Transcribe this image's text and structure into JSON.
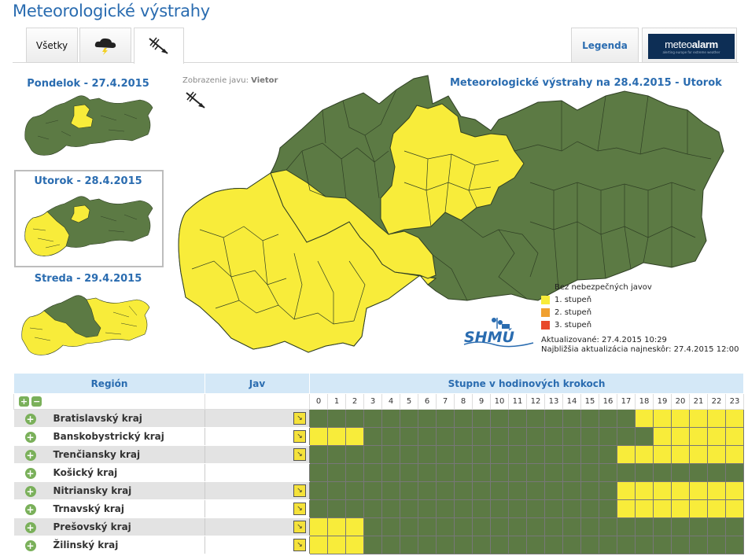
{
  "page": {
    "title": "Meteorologické výstrahy"
  },
  "tabs": {
    "all": "Všetky",
    "storm_icon": "storm-icon",
    "wind_icon": "wind-icon",
    "legend": "Legenda",
    "meteoalarm_name_a": "meteo",
    "meteoalarm_name_b": "alarm",
    "meteoalarm_tagline": "alerting europe for extreme weather"
  },
  "days": [
    {
      "label": "Pondelok - 27.4.2015"
    },
    {
      "label": "Utorok - 28.4.2015"
    },
    {
      "label": "Streda - 29.4.2015"
    }
  ],
  "phenomenon": {
    "prefix": "Zobrazenie javu:",
    "name": "Vietor"
  },
  "map": {
    "title": "Meteorologické výstrahy na 28.4.2015 - Utorok",
    "legend": [
      {
        "label": "Bez nebezpečných javov",
        "color": "#5c7a44"
      },
      {
        "label": "1. stupeň",
        "color": "#f8ec3a"
      },
      {
        "label": "2. stupeň",
        "color": "#f0a030"
      },
      {
        "label": "3. stupeň",
        "color": "#e8482a"
      }
    ],
    "updated": "Aktualizované: 27.4.2015 10:29",
    "next_update": "Najbližšia aktualizácia najneskôr: 27.4.2015 12:00",
    "logo_text": "SHMÚ"
  },
  "table": {
    "col_region": "Región",
    "col_jav": "Jav",
    "col_hours": "Stupne v hodinových krokoch",
    "hours": [
      "0",
      "1",
      "2",
      "3",
      "4",
      "5",
      "6",
      "7",
      "8",
      "9",
      "10",
      "11",
      "12",
      "13",
      "14",
      "15",
      "16",
      "17",
      "18",
      "19",
      "20",
      "21",
      "22",
      "23"
    ],
    "rows": [
      {
        "region": "Bratislavský kraj",
        "has_jav": true,
        "levels": "ggggggggggggggggggyyyyyy"
      },
      {
        "region": "Banskobystrický kraj",
        "has_jav": true,
        "levels": "yyyggggggggggggggggyyyyy"
      },
      {
        "region": "Trenčiansky kraj",
        "has_jav": true,
        "levels": "gggggggggggggggggyyyyyyy"
      },
      {
        "region": "Košický kraj",
        "has_jav": false,
        "levels": "gggggggggggggggggggggggg"
      },
      {
        "region": "Nitriansky kraj",
        "has_jav": true,
        "levels": "gggggggggggggggggyyyyyyy"
      },
      {
        "region": "Trnavský kraj",
        "has_jav": true,
        "levels": "gggggggggggggggggyyyyyyy"
      },
      {
        "region": "Prešovský kraj",
        "has_jav": true,
        "levels": "yyyggggggggggggggggggggg"
      },
      {
        "region": "Žilinský kraj",
        "has_jav": true,
        "levels": "yyyggggggggggggggggggggg"
      }
    ]
  }
}
